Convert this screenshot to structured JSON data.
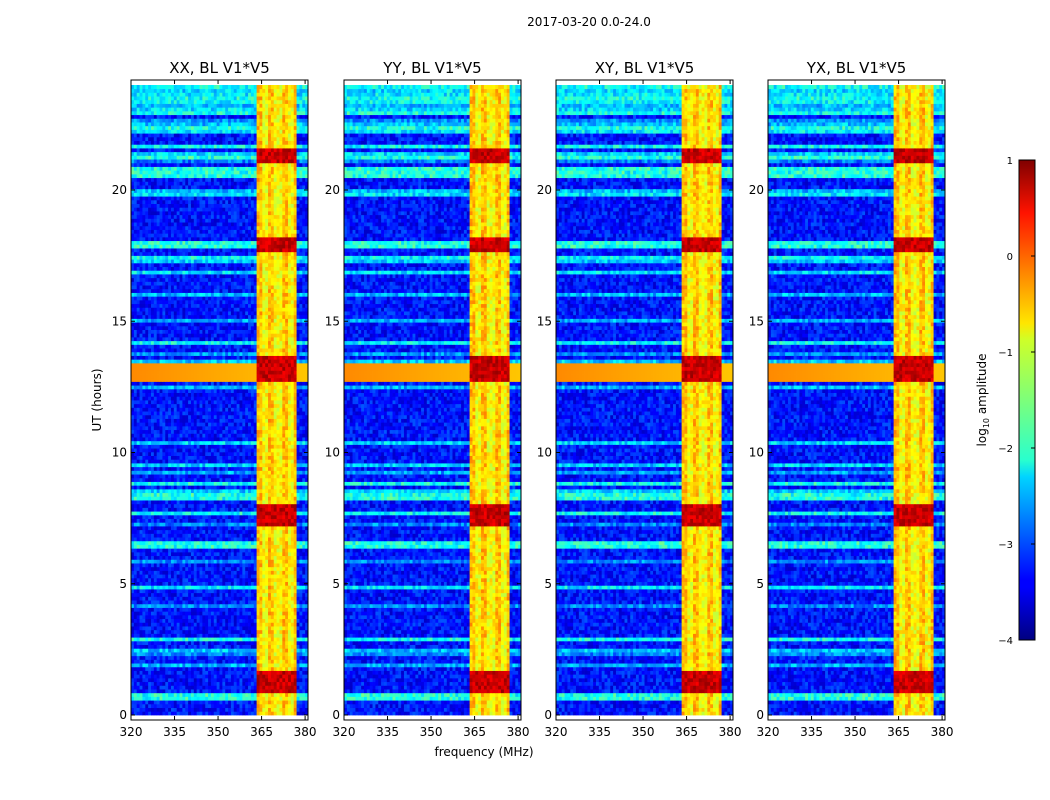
{
  "suptitle": "2017-03-20 0.0-24.0",
  "chart_data": {
    "type": "heatmap",
    "xlabel": "frequency (MHz)",
    "ylabel": "UT (hours)",
    "xlim": [
      320,
      381
    ],
    "ylim": [
      0,
      24
    ],
    "xticks": [
      320,
      335,
      350,
      365,
      380
    ],
    "yticks": [
      0,
      5,
      10,
      15,
      20
    ],
    "x_tick_labels": [
      "320",
      "335",
      "350",
      "365",
      "380"
    ],
    "y_tick_labels": [
      "0",
      "5",
      "10",
      "15",
      "20"
    ],
    "panels": [
      {
        "title": "XX, BL V1*V5"
      },
      {
        "title": "YY, BL V1*V5"
      },
      {
        "title": "XY, BL V1*V5"
      },
      {
        "title": "YX, BL V1*V5"
      }
    ],
    "colorbar": {
      "label": "log10 amplitude",
      "label_main": "log",
      "label_sub": "10",
      "label_rest": " amplitude",
      "range": [
        -4,
        1
      ],
      "ticks": [
        1,
        0,
        -1,
        -2,
        -3,
        -4
      ],
      "tick_labels": [
        "1",
        "0",
        "−1",
        "−2",
        "−3",
        "−4"
      ],
      "colormap": "jet"
    },
    "features": {
      "background_level": -3.3,
      "strong_band_mhz": [
        363.5,
        377.5
      ],
      "strong_band_level": -0.9,
      "band_channels_mhz": [
        364.5,
        368.5,
        373.0,
        377.0
      ],
      "wideband_rfi_hours": [
        0.7,
        6.5,
        8.3,
        13.0,
        17.9,
        20.7
      ],
      "hot_hours": [
        1.1,
        1.5,
        7.5,
        7.8,
        13.0,
        13.5,
        17.9,
        21.3
      ]
    }
  }
}
